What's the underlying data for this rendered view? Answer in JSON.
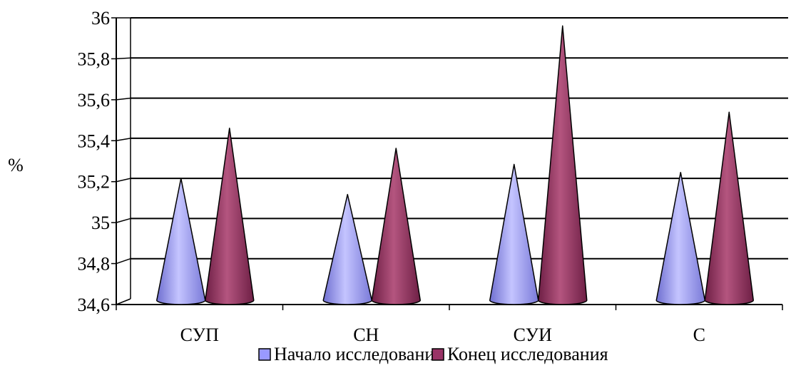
{
  "chart_data": {
    "type": "bar",
    "mark_shape": "cone",
    "categories": [
      "СУП",
      "СН",
      "СУИ",
      "С"
    ],
    "series": [
      {
        "name": "Начало исследования",
        "values": [
          35.2,
          35.12,
          35.27,
          35.23
        ],
        "color": "#9999FF"
      },
      {
        "name": "Конец исследования",
        "values": [
          35.45,
          35.35,
          35.96,
          35.53
        ],
        "color": "#993366"
      }
    ],
    "ylabel": "%",
    "ylim": [
      34.6,
      36
    ],
    "yticks": [
      "34,6",
      "34,8",
      "35",
      "35,2",
      "35,4",
      "35,6",
      "35,8",
      "36"
    ],
    "grid": true,
    "legend_position": "bottom"
  }
}
